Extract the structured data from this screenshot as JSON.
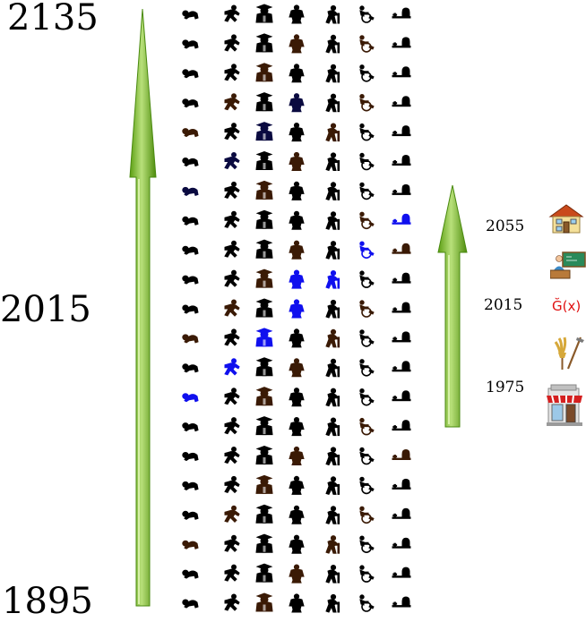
{
  "timeline_labels": {
    "top": "2135",
    "middle": "2015",
    "bottom": "1895"
  },
  "secondary_labels": {
    "top": "2055",
    "middle": "2015",
    "bottom": "1975"
  },
  "formula_text": "Ğ(x)",
  "colors": {
    "arrow_green": "#6aaa1e",
    "arrow_light": "#b8e07a",
    "figure_black": "#000000",
    "figure_brown": "#3a1a05",
    "figure_blue": "#1010ee",
    "figure_navy": "#0a0a40",
    "formula_red": "#e01010"
  },
  "icon_grid": {
    "columns": [
      "crawling-baby-icon",
      "running-child-icon",
      "graduate-icon",
      "adult-silhouette-icon",
      "elderly-with-cane-icon",
      "wheelchair-icon",
      "gravestone-icon"
    ],
    "row_colors": [
      [
        "k",
        "k",
        "k",
        "k",
        "k",
        "k",
        "k"
      ],
      [
        "k",
        "k",
        "k",
        "b",
        "k",
        "b",
        "k"
      ],
      [
        "k",
        "k",
        "b",
        "k",
        "k",
        "k",
        "k"
      ],
      [
        "k",
        "b",
        "k",
        "n",
        "k",
        "b",
        "k"
      ],
      [
        "b",
        "k",
        "n",
        "k",
        "b",
        "k",
        "k"
      ],
      [
        "k",
        "n",
        "k",
        "b",
        "k",
        "k",
        "k"
      ],
      [
        "n",
        "k",
        "b",
        "k",
        "k",
        "k",
        "k"
      ],
      [
        "k",
        "k",
        "k",
        "k",
        "k",
        "b",
        "B"
      ],
      [
        "k",
        "k",
        "k",
        "b",
        "k",
        "B",
        "b"
      ],
      [
        "k",
        "k",
        "b",
        "B",
        "B",
        "k",
        "k"
      ],
      [
        "k",
        "b",
        "k",
        "B",
        "k",
        "b",
        "k"
      ],
      [
        "b",
        "k",
        "B",
        "k",
        "b",
        "k",
        "k"
      ],
      [
        "k",
        "B",
        "k",
        "b",
        "k",
        "k",
        "k"
      ],
      [
        "B",
        "k",
        "b",
        "k",
        "k",
        "k",
        "k"
      ],
      [
        "k",
        "k",
        "k",
        "k",
        "k",
        "b",
        "k"
      ],
      [
        "k",
        "k",
        "k",
        "b",
        "k",
        "k",
        "b"
      ],
      [
        "k",
        "k",
        "b",
        "k",
        "k",
        "k",
        "k"
      ],
      [
        "k",
        "b",
        "k",
        "k",
        "k",
        "b",
        "k"
      ],
      [
        "b",
        "k",
        "k",
        "k",
        "b",
        "k",
        "k"
      ],
      [
        "k",
        "k",
        "k",
        "b",
        "k",
        "k",
        "k"
      ],
      [
        "k",
        "k",
        "b",
        "k",
        "k",
        "k",
        "k"
      ]
    ]
  },
  "life_stage_icons": [
    "house-icon",
    "teacher-icon",
    "formula-icon",
    "farming-tools-icon",
    "shop-icon"
  ]
}
